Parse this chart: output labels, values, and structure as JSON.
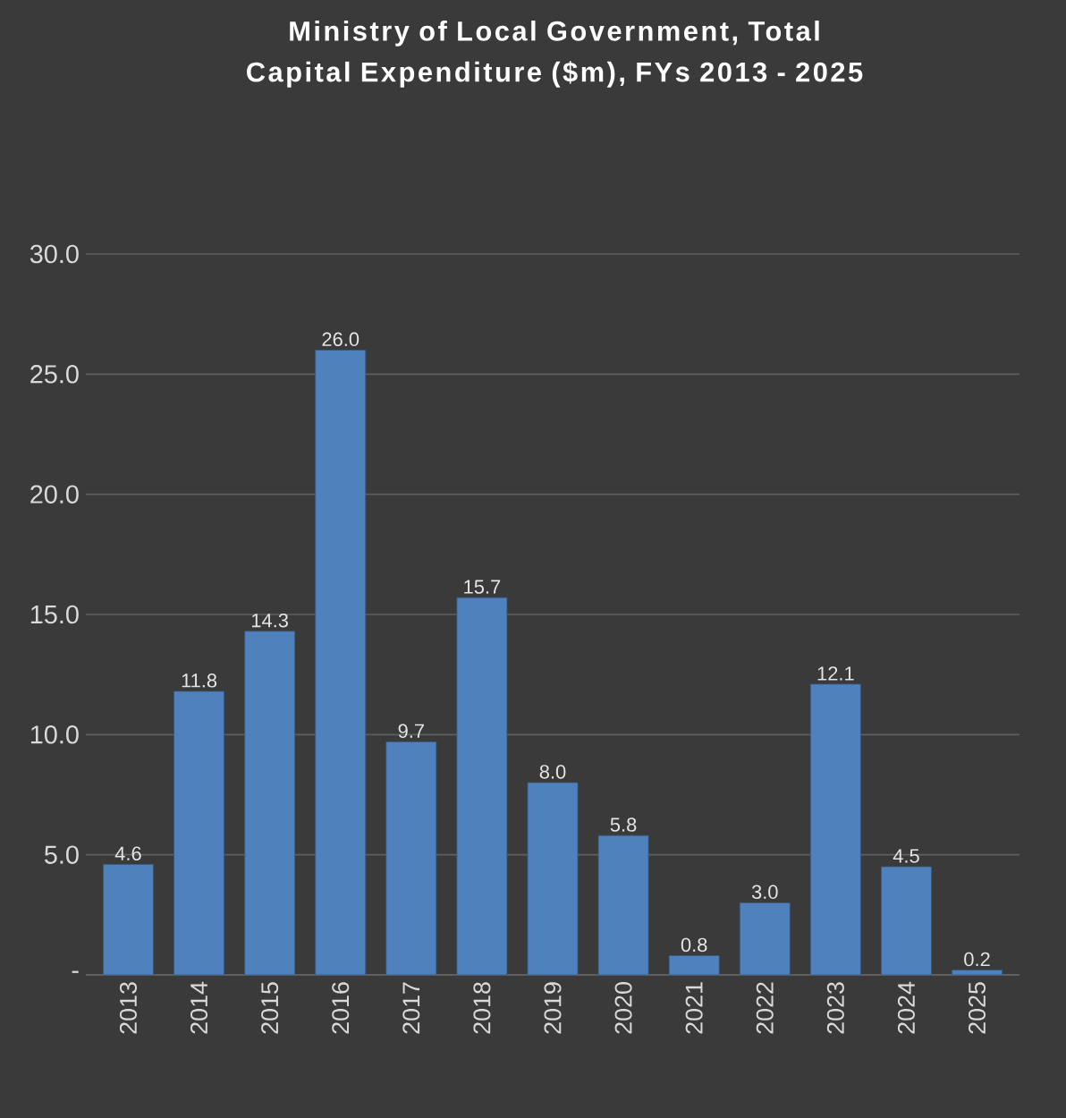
{
  "chart_data": {
    "type": "bar",
    "title": "Ministry of Local Government, Total Capital Expenditure ($m), FYs 2013 - 2025",
    "categories": [
      "2013",
      "2014",
      "2015",
      "2016",
      "2017",
      "2018",
      "2019",
      "2020",
      "2021",
      "2022",
      "2023",
      "2024",
      "2025"
    ],
    "values": [
      4.6,
      11.8,
      14.3,
      26.0,
      9.7,
      15.7,
      8.0,
      5.8,
      0.8,
      3.0,
      12.1,
      4.5,
      0.2
    ],
    "value_labels": [
      "4.6",
      "11.8",
      "14.3",
      "26.0",
      "9.7",
      "15.7",
      "8.0",
      "5.8",
      "0.8",
      "3.0",
      "12.1",
      "4.5",
      "0.2"
    ],
    "color": "#4f81bd",
    "ylim": [
      0,
      30
    ],
    "yticks": [
      {
        "value": 0,
        "label": "-"
      },
      {
        "value": 5,
        "label": "5.0"
      },
      {
        "value": 10,
        "label": "10.0"
      },
      {
        "value": 15,
        "label": "15.0"
      },
      {
        "value": 20,
        "label": "20.0"
      },
      {
        "value": 25,
        "label": "25.0"
      },
      {
        "value": 30,
        "label": "30.0"
      }
    ],
    "grid": "y"
  }
}
